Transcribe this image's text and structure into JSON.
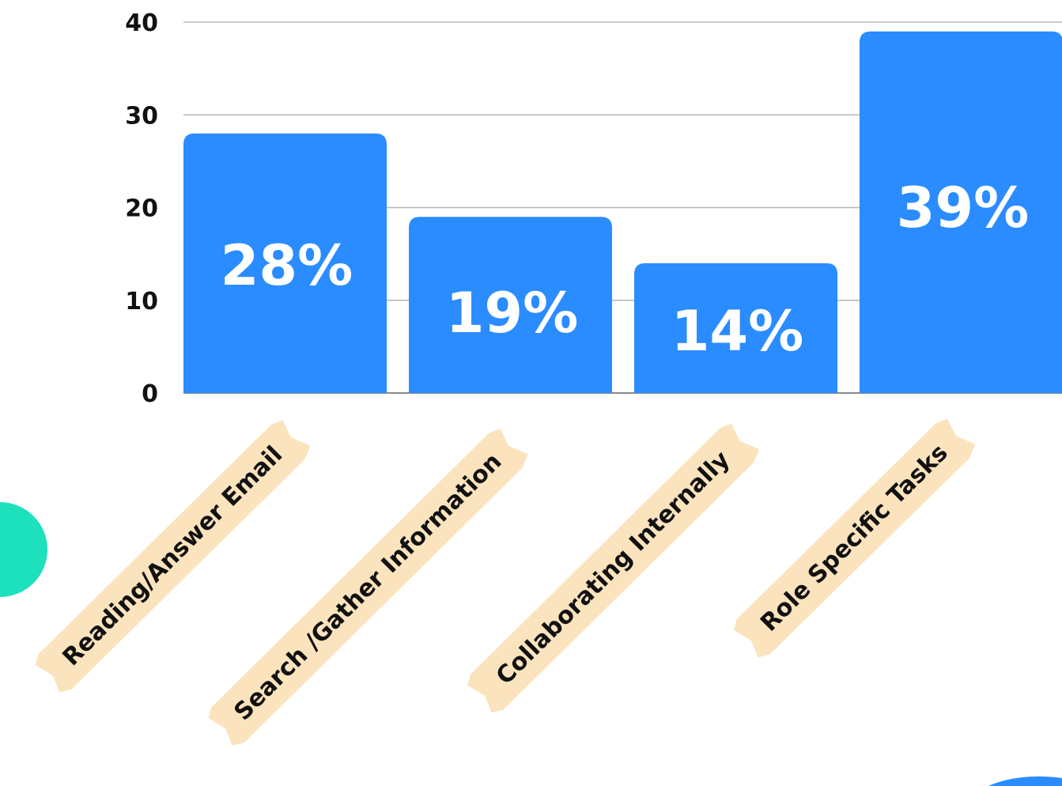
{
  "chart_data": {
    "type": "bar",
    "categories": [
      "Reading/Answer Email",
      "Search /Gather Information",
      "Collaborating Internally",
      "Role Specific Tasks"
    ],
    "values": [
      28,
      19,
      14,
      39
    ],
    "data_labels": [
      "28%",
      "19%",
      "14%",
      "39%"
    ],
    "ylim": [
      0,
      40
    ],
    "yticks": [
      "0",
      "10",
      "20",
      "30",
      "40"
    ],
    "grid": true,
    "legend": "none",
    "colors": {
      "bar": "#2a8cff",
      "gridline": "#b5b5b5",
      "label_tape": "#fbe3bd",
      "accent_teal": "#1de0bd",
      "accent_blue": "#2a8cff"
    }
  }
}
